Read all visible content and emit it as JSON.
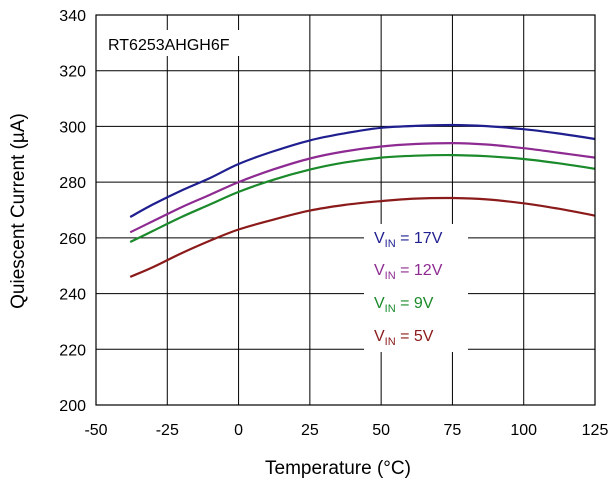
{
  "chart_data": {
    "type": "line",
    "annotation": "RT6253AHGH6F",
    "xlabel": "Temperature (°C)",
    "ylabel": "Quiescent Current (µA)",
    "xlim": [
      -50,
      125
    ],
    "ylim": [
      200,
      340
    ],
    "xticks": [
      -50,
      -25,
      0,
      25,
      50,
      75,
      100,
      125
    ],
    "yticks": [
      200,
      220,
      240,
      260,
      280,
      300,
      320,
      340
    ],
    "grid": true,
    "legend_position": "inside-right",
    "series": [
      {
        "name": "VIN = 17V",
        "legend_main": "V",
        "legend_sub": "IN",
        "legend_rest": " = 17V",
        "color": "#1f1f8f",
        "x": [
          -38,
          -30,
          -20,
          -10,
          0,
          12,
          25,
          37,
          50,
          62,
          75,
          87,
          100,
          112,
          125
        ],
        "y": [
          267.5,
          272,
          277,
          281.5,
          286.5,
          291,
          295,
          297.5,
          299.5,
          300.2,
          300.5,
          300.1,
          299,
          297.5,
          295.5
        ]
      },
      {
        "name": "VIN = 12V",
        "legend_main": "V",
        "legend_sub": "IN",
        "legend_rest": " = 12V",
        "color": "#8e2b92",
        "x": [
          -38,
          -30,
          -20,
          -10,
          0,
          12,
          25,
          37,
          50,
          62,
          75,
          87,
          100,
          112,
          125
        ],
        "y": [
          262,
          266,
          271,
          275.5,
          280,
          284.5,
          288.5,
          291,
          292.8,
          293.7,
          294,
          293.5,
          292.2,
          290.6,
          288.8
        ]
      },
      {
        "name": "VIN = 9V",
        "legend_main": "V",
        "legend_sub": "IN",
        "legend_rest": " = 9V",
        "color": "#1a8a2a",
        "x": [
          -38,
          -30,
          -20,
          -10,
          0,
          12,
          25,
          37,
          50,
          62,
          75,
          87,
          100,
          112,
          125
        ],
        "y": [
          258.5,
          262.5,
          267.5,
          272,
          276.5,
          280.8,
          284.5,
          287,
          288.8,
          289.5,
          289.7,
          289.3,
          288.3,
          286.8,
          284.8
        ]
      },
      {
        "name": "VIN = 5V",
        "legend_main": "V",
        "legend_sub": "IN",
        "legend_rest": " = 5V",
        "color": "#8b1a1a",
        "x": [
          -38,
          -30,
          -20,
          -10,
          0,
          12,
          25,
          37,
          50,
          62,
          75,
          87,
          100,
          112,
          125
        ],
        "y": [
          246,
          249.5,
          254.5,
          259,
          263,
          266.5,
          269.8,
          271.8,
          273.2,
          274.1,
          274.3,
          273.8,
          272.4,
          270.5,
          268
        ]
      }
    ]
  }
}
